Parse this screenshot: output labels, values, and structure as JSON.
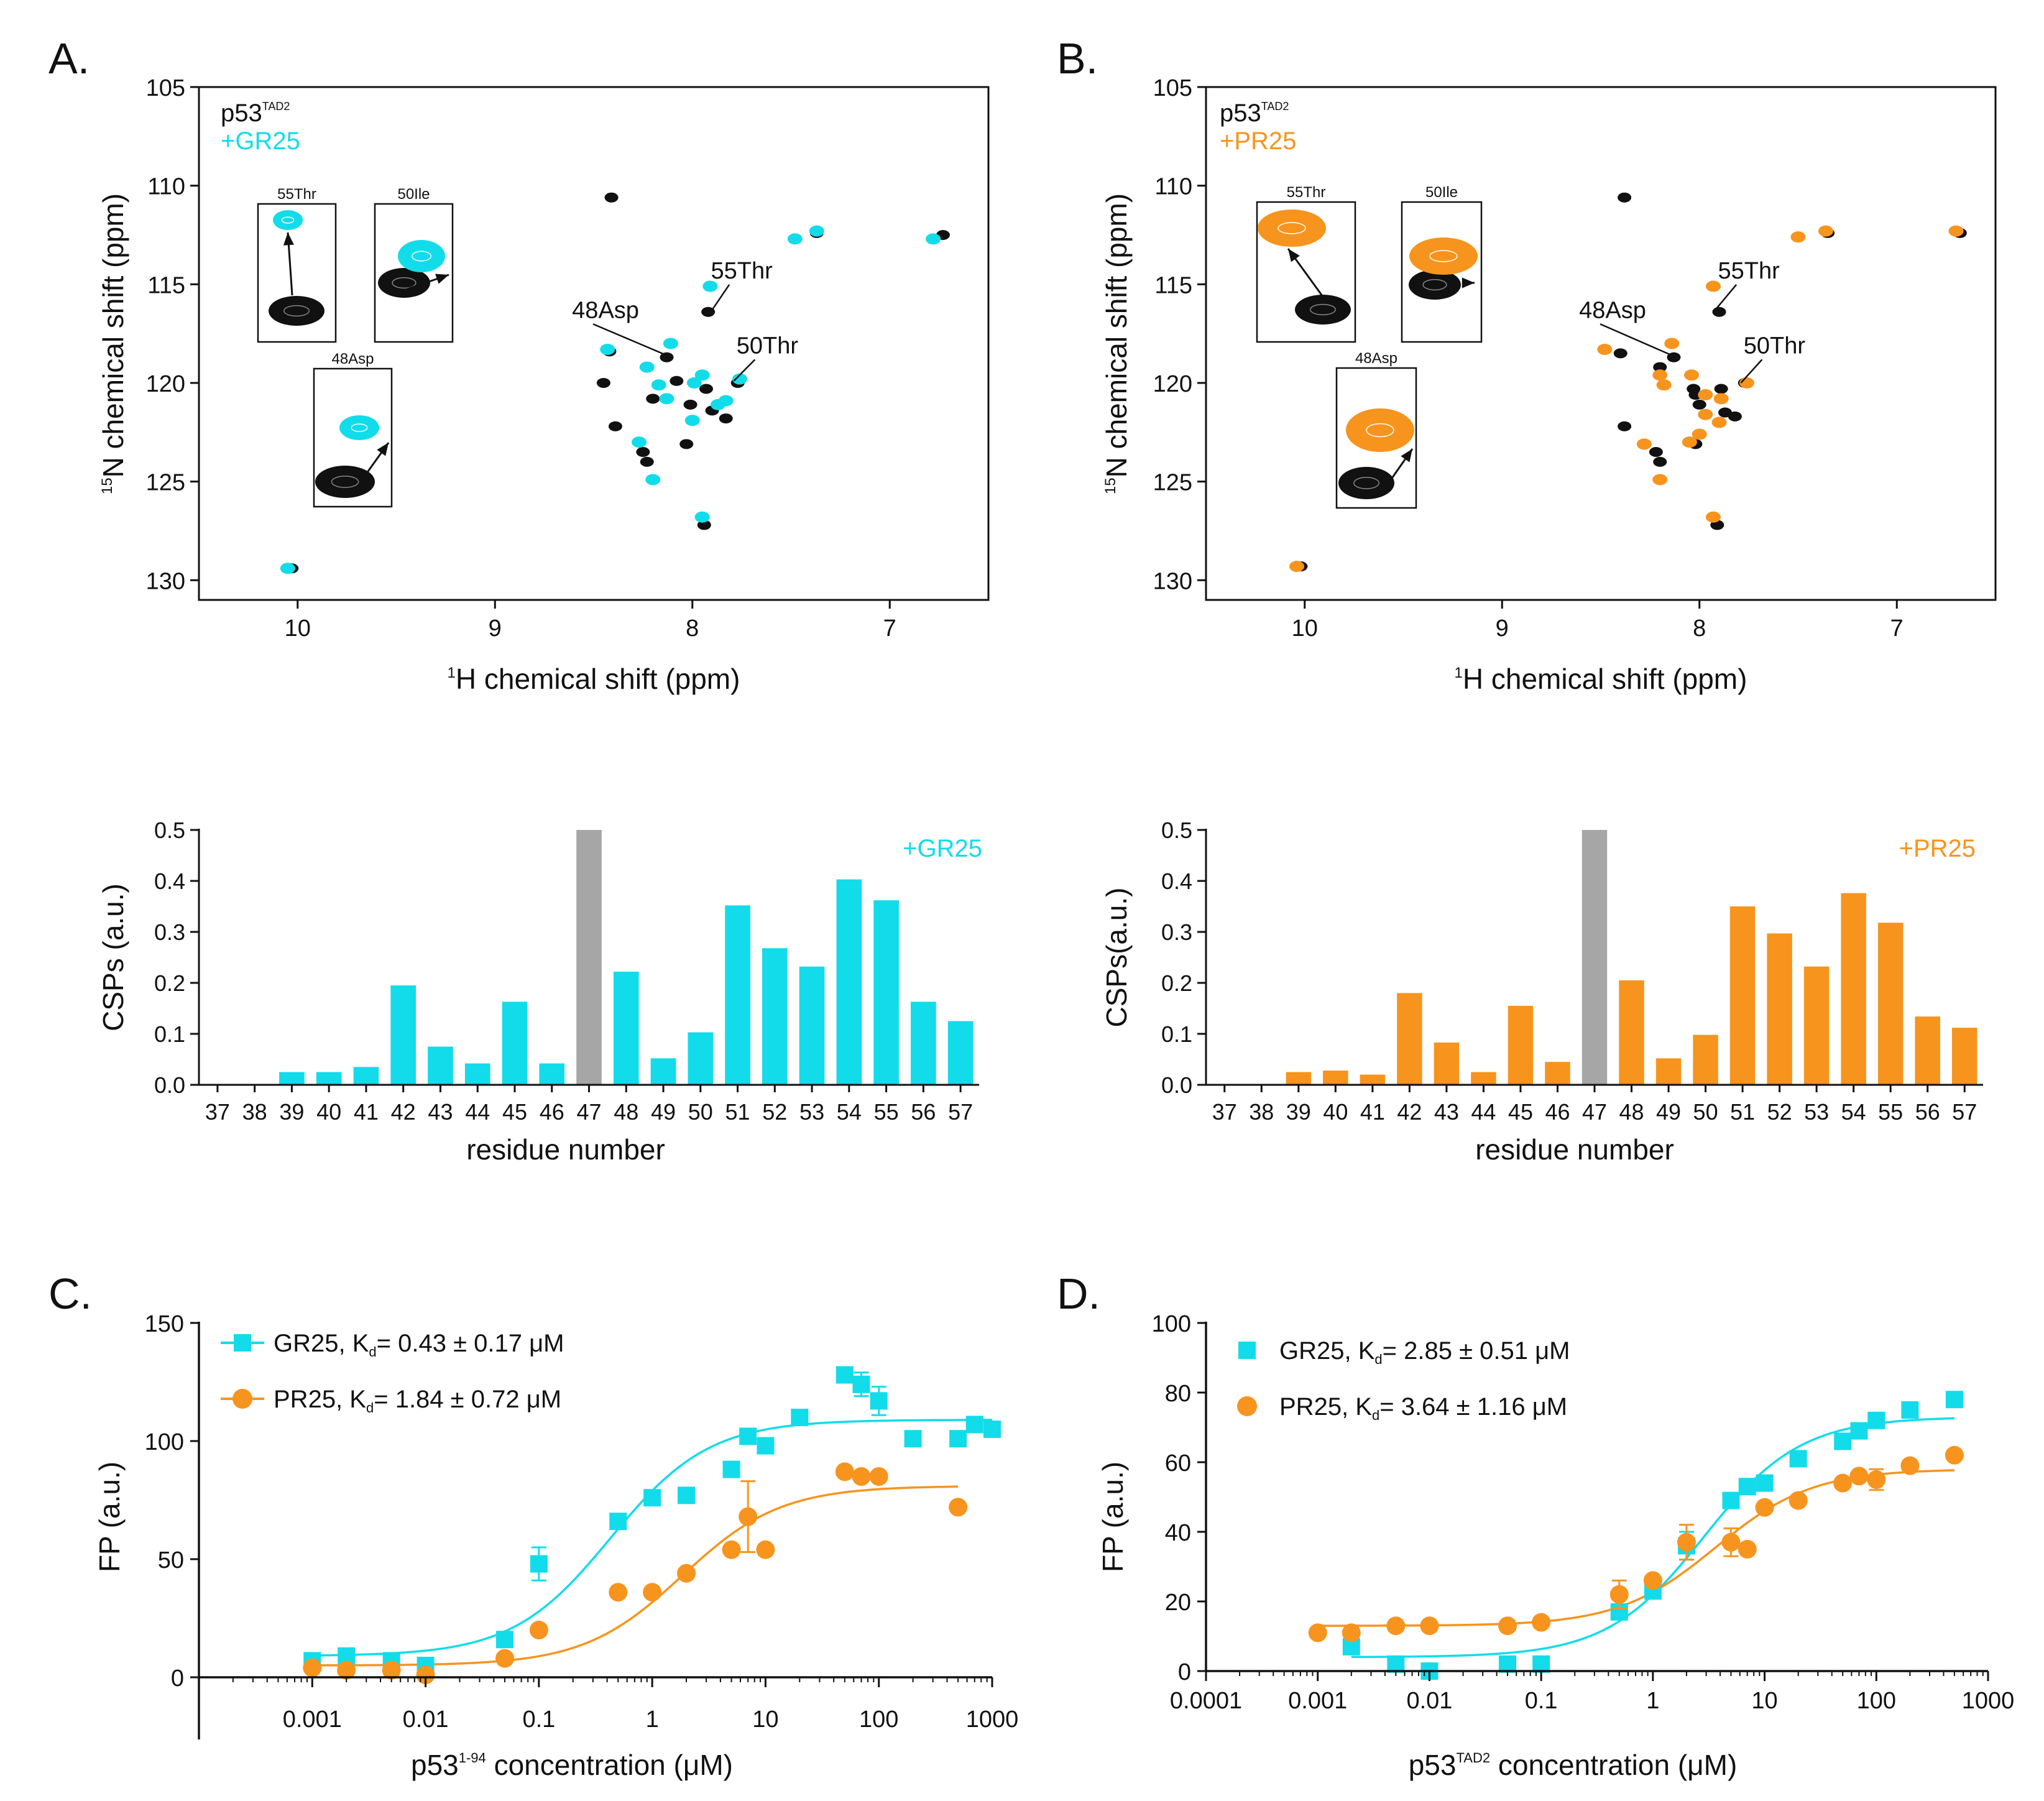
{
  "panels": {
    "A": "A.",
    "B": "B.",
    "C": "C.",
    "D": "D."
  },
  "colors": {
    "cyan": "#12dcea",
    "orange": "#f7941d",
    "black": "#111111",
    "gray": "#a6a6a6"
  },
  "chart_data": [
    {
      "id": "A",
      "type": "scatter",
      "subtype": "hsqc",
      "title_main": "p53",
      "title_sup": "TAD2",
      "title_add": "+GR25",
      "xlabel_sup": "1",
      "xlabel": "H chemical shift  (ppm)",
      "ylabel_sup": "15",
      "ylabel": "N chemical shift  (ppm)",
      "xlim": [
        10.5,
        6.5
      ],
      "ylim": [
        105,
        131
      ],
      "xticks": [
        10,
        9,
        8,
        7
      ],
      "yticks": [
        105,
        110,
        115,
        120,
        125,
        130
      ],
      "free_peaks": [
        [
          8.41,
          110.6
        ],
        [
          7.37,
          112.4
        ],
        [
          6.73,
          112.5
        ],
        [
          8.42,
          118.4
        ],
        [
          8.13,
          118.7
        ],
        [
          7.92,
          116.4
        ],
        [
          8.23,
          119.2
        ],
        [
          8.08,
          119.9
        ],
        [
          8.2,
          120.8
        ],
        [
          7.93,
          120.3
        ],
        [
          7.77,
          120.0
        ],
        [
          8.01,
          121.1
        ],
        [
          7.9,
          121.4
        ],
        [
          7.83,
          121.8
        ],
        [
          8.39,
          122.2
        ],
        [
          8.25,
          123.5
        ],
        [
          8.23,
          124.0
        ],
        [
          8.03,
          123.1
        ],
        [
          7.94,
          127.2
        ],
        [
          10.03,
          129.4
        ],
        [
          8.45,
          120.0
        ]
      ],
      "bound_peaks": [
        [
          7.48,
          112.7
        ],
        [
          7.37,
          112.3
        ],
        [
          6.78,
          112.7
        ],
        [
          8.43,
          118.3
        ],
        [
          7.91,
          115.1
        ],
        [
          8.11,
          118.0
        ],
        [
          8.23,
          119.2
        ],
        [
          8.17,
          120.1
        ],
        [
          8.13,
          120.8
        ],
        [
          7.99,
          120.0
        ],
        [
          7.95,
          119.6
        ],
        [
          7.83,
          120.9
        ],
        [
          7.76,
          119.8
        ],
        [
          8.27,
          123.0
        ],
        [
          8.2,
          124.9
        ],
        [
          8.0,
          121.9
        ],
        [
          7.87,
          121.1
        ],
        [
          7.95,
          126.8
        ],
        [
          10.05,
          129.4
        ]
      ],
      "annotations": [
        {
          "text": "55Thr",
          "x": 7.75,
          "y": 114.7,
          "tx": 7.9,
          "ty": 116.3
        },
        {
          "text": "48Asp",
          "x": 8.44,
          "y": 116.7,
          "tx": 8.13,
          "ty": 118.6
        },
        {
          "text": "50Thr",
          "x": 7.62,
          "y": 118.5,
          "tx": 7.79,
          "ty": 119.9
        }
      ],
      "insets": [
        {
          "label": "55Thr",
          "arrow": "up"
        },
        {
          "label": "50Ile",
          "arrow": "up-right"
        },
        {
          "label": "48Asp",
          "arrow": "up-right"
        }
      ]
    },
    {
      "id": "B",
      "type": "scatter",
      "subtype": "hsqc",
      "title_main": "p53",
      "title_sup": "TAD2",
      "title_add": "+PR25",
      "xlabel_sup": "1",
      "xlabel": "H chemical shift  (ppm)",
      "ylabel_sup": "15",
      "ylabel": "N chemical shift  (ppm)",
      "xlim": [
        10.5,
        6.5
      ],
      "ylim": [
        105,
        131
      ],
      "xticks": [
        10,
        9,
        8,
        7
      ],
      "yticks": [
        105,
        110,
        115,
        120,
        125,
        130
      ],
      "free_peaks": [
        [
          8.38,
          110.6
        ],
        [
          7.35,
          112.4
        ],
        [
          6.68,
          112.4
        ],
        [
          8.4,
          118.5
        ],
        [
          8.13,
          118.7
        ],
        [
          7.9,
          116.4
        ],
        [
          8.2,
          119.2
        ],
        [
          8.03,
          120.3
        ],
        [
          8.02,
          120.6
        ],
        [
          7.89,
          120.3
        ],
        [
          7.77,
          120.0
        ],
        [
          8.0,
          121.1
        ],
        [
          7.87,
          121.5
        ],
        [
          7.82,
          121.7
        ],
        [
          8.38,
          122.2
        ],
        [
          8.22,
          123.5
        ],
        [
          8.2,
          124.0
        ],
        [
          8.02,
          123.1
        ],
        [
          7.91,
          127.2
        ],
        [
          10.02,
          129.3
        ]
      ],
      "bound_peaks": [
        [
          7.5,
          112.6
        ],
        [
          7.36,
          112.3
        ],
        [
          6.7,
          112.3
        ],
        [
          8.48,
          118.3
        ],
        [
          7.93,
          115.1
        ],
        [
          8.14,
          118.0
        ],
        [
          8.2,
          119.6
        ],
        [
          8.04,
          119.6
        ],
        [
          8.18,
          120.1
        ],
        [
          7.97,
          120.6
        ],
        [
          7.89,
          120.8
        ],
        [
          7.97,
          121.6
        ],
        [
          7.9,
          122.0
        ],
        [
          7.76,
          120.0
        ],
        [
          8.28,
          123.1
        ],
        [
          8.2,
          124.9
        ],
        [
          8.0,
          122.6
        ],
        [
          8.05,
          123.0
        ],
        [
          7.93,
          126.8
        ],
        [
          10.04,
          129.3
        ]
      ],
      "annotations": [
        {
          "text": "55Thr",
          "x": 7.75,
          "y": 114.7,
          "tx": 7.92,
          "ty": 116.3
        },
        {
          "text": "48Asp",
          "x": 8.44,
          "y": 116.7,
          "tx": 8.14,
          "ty": 118.6
        },
        {
          "text": "50Thr",
          "x": 7.62,
          "y": 118.5,
          "tx": 7.79,
          "ty": 120.0
        }
      ],
      "insets": [
        {
          "label": "55Thr",
          "arrow": "up-left"
        },
        {
          "label": "50Ile",
          "arrow": "up"
        },
        {
          "label": "48Asp",
          "arrow": "up-right"
        }
      ]
    },
    {
      "id": "A2",
      "type": "bar",
      "ylabel": "CSPs (a.u.)",
      "xlabel": "residue number",
      "legend": "+GR25",
      "ylim": [
        0,
        0.5
      ],
      "yticks": [
        "0.0",
        "0.1",
        "0.2",
        "0.3",
        "0.4",
        "0.5"
      ],
      "categories": [
        "37",
        "38",
        "39",
        "40",
        "41",
        "42",
        "43",
        "44",
        "45",
        "46",
        "47",
        "48",
        "49",
        "50",
        "51",
        "52",
        "53",
        "54",
        "55",
        "56",
        "57"
      ],
      "values": [
        0,
        0,
        0.025,
        0.025,
        0.035,
        0.195,
        0.075,
        0.042,
        0.163,
        0.042,
        0.5,
        0.222,
        0.052,
        0.103,
        0.352,
        0.268,
        0.232,
        0.403,
        0.362,
        0.163,
        0.125
      ],
      "gray_index": 10
    },
    {
      "id": "B2",
      "type": "bar",
      "ylabel": "CSPs(a.u.)",
      "xlabel": "residue number",
      "legend": "+PR25",
      "ylim": [
        0,
        0.5
      ],
      "yticks": [
        "0.0",
        "0.1",
        "0.2",
        "0.3",
        "0.4",
        "0.5"
      ],
      "categories": [
        "37",
        "38",
        "39",
        "40",
        "41",
        "42",
        "43",
        "44",
        "45",
        "46",
        "47",
        "48",
        "49",
        "50",
        "51",
        "52",
        "53",
        "54",
        "55",
        "56",
        "57"
      ],
      "values": [
        0,
        0,
        0.025,
        0.028,
        0.02,
        0.18,
        0.083,
        0.025,
        0.155,
        0.045,
        0.5,
        0.205,
        0.052,
        0.098,
        0.35,
        0.297,
        0.232,
        0.376,
        0.318,
        0.134,
        0.112
      ],
      "gray_index": 10
    },
    {
      "id": "C",
      "type": "scatter",
      "subtype": "binding",
      "ylabel": "FP (a.u.)",
      "xlabel_pre": "p53",
      "xlabel_sup": "1-94",
      "xlabel_post": " concentration (μM)",
      "xlim_log": [
        -4,
        3
      ],
      "ylim": [
        0,
        150
      ],
      "xticks": [
        "0.001",
        "0.01",
        "0.1",
        "1",
        "10",
        "100",
        "1000"
      ],
      "xtick_vals": [
        0.001,
        0.01,
        0.1,
        1,
        10,
        100,
        1000
      ],
      "yticks": [
        0,
        50,
        100,
        150
      ],
      "series": [
        {
          "name": "GR25",
          "legend_pre": "GR25, K",
          "legend_sub": "d",
          "legend_post": "= 0.43 ± 0.17 μM",
          "marker": "square",
          "fit": {
            "bottom": 9,
            "top": 109,
            "kd": 0.43
          },
          "points": [
            [
              0.001,
              7
            ],
            [
              0.002,
              9
            ],
            [
              0.005,
              7
            ],
            [
              0.01,
              5
            ],
            [
              0.05,
              16
            ],
            [
              0.1,
              48
            ],
            [
              0.5,
              66
            ],
            [
              1,
              76
            ],
            [
              2,
              77
            ],
            [
              5,
              88
            ],
            [
              7,
              102
            ],
            [
              10,
              98
            ],
            [
              20,
              110
            ],
            [
              50,
              128
            ],
            [
              70,
              124
            ],
            [
              100,
              117
            ],
            [
              200,
              101
            ],
            [
              500,
              101
            ],
            [
              700,
              107
            ],
            [
              1000,
              105
            ]
          ],
          "errors": [
            [
              0.1,
              7
            ],
            [
              70,
              5
            ],
            [
              100,
              6
            ]
          ]
        },
        {
          "name": "PR25",
          "legend_pre": "PR25, K",
          "legend_sub": "d",
          "legend_post": "= 1.84 ± 0.72 μM",
          "marker": "circle",
          "fit": {
            "bottom": 5,
            "top": 81,
            "kd": 1.84
          },
          "points": [
            [
              0.001,
              4
            ],
            [
              0.002,
              3
            ],
            [
              0.005,
              3
            ],
            [
              0.01,
              1
            ],
            [
              0.05,
              8
            ],
            [
              0.1,
              20
            ],
            [
              0.5,
              36
            ],
            [
              1,
              36
            ],
            [
              2,
              44
            ],
            [
              5,
              54
            ],
            [
              7,
              68
            ],
            [
              10,
              54
            ],
            [
              50,
              87
            ],
            [
              70,
              85
            ],
            [
              100,
              85
            ],
            [
              500,
              72
            ]
          ],
          "errors": [
            [
              7,
              15
            ]
          ]
        }
      ]
    },
    {
      "id": "D",
      "type": "scatter",
      "subtype": "binding",
      "ylabel": "FP (a.u.)",
      "xlabel_pre": "p53",
      "xlabel_sup": "TAD2",
      "xlabel_post": " concentration (μM)",
      "xlim_log": [
        -4,
        3
      ],
      "ylim": [
        0,
        100
      ],
      "xticks": [
        "0.0001",
        "0.001",
        "0.01",
        "0.1",
        "1",
        "10",
        "100",
        "1000"
      ],
      "xtick_vals": [
        0.0001,
        0.001,
        0.01,
        0.1,
        1,
        10,
        100,
        1000
      ],
      "yticks": [
        0,
        20,
        40,
        60,
        80,
        100
      ],
      "series": [
        {
          "name": "GR25",
          "legend_pre": "GR25, K",
          "legend_sub": "d",
          "legend_post": "= 2.85 ± 0.51 μM",
          "marker": "square",
          "fit": {
            "bottom": 4,
            "top": 73,
            "kd": 2.85
          },
          "points": [
            [
              0.002,
              7
            ],
            [
              0.005,
              2
            ],
            [
              0.01,
              0
            ],
            [
              0.05,
              2
            ],
            [
              0.1,
              2
            ],
            [
              0.5,
              17
            ],
            [
              1,
              23
            ],
            [
              2,
              36
            ],
            [
              5,
              49
            ],
            [
              7,
              53
            ],
            [
              10,
              54
            ],
            [
              20,
              61
            ],
            [
              50,
              66
            ],
            [
              70,
              69
            ],
            [
              100,
              72
            ],
            [
              200,
              75
            ],
            [
              500,
              78
            ]
          ],
          "errors": [
            [
              2,
              4
            ]
          ]
        },
        {
          "name": "PR25",
          "legend_pre": "PR25, K",
          "legend_sub": "d",
          "legend_post": "= 3.64 ± 1.16 μM",
          "marker": "circle",
          "fit": {
            "bottom": 13,
            "top": 58,
            "kd": 3.64
          },
          "points": [
            [
              0.001,
              11
            ],
            [
              0.002,
              11
            ],
            [
              0.005,
              13
            ],
            [
              0.01,
              13
            ],
            [
              0.05,
              13
            ],
            [
              0.1,
              14
            ],
            [
              0.5,
              22
            ],
            [
              1,
              26
            ],
            [
              2,
              37
            ],
            [
              5,
              37
            ],
            [
              7,
              35
            ],
            [
              10,
              47
            ],
            [
              20,
              49
            ],
            [
              50,
              54
            ],
            [
              70,
              56
            ],
            [
              100,
              55
            ],
            [
              200,
              59
            ],
            [
              500,
              62
            ]
          ],
          "errors": [
            [
              0.5,
              4
            ],
            [
              2,
              5
            ],
            [
              5,
              4
            ],
            [
              100,
              3
            ]
          ]
        }
      ]
    }
  ]
}
